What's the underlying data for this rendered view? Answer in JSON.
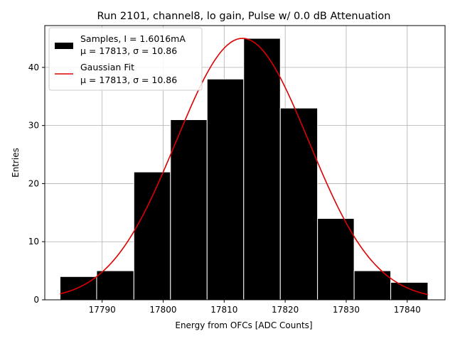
{
  "chart_data": {
    "type": "bar",
    "title": "Run 2101, channel8, lo gain, Pulse w/ 0.0 dB Attenuation",
    "xlabel": "Energy from OFCs [ADC Counts]",
    "ylabel": "Entries",
    "xlim": [
      17780.6,
      17846.2
    ],
    "ylim": [
      0,
      47.2
    ],
    "xticks": [
      17790,
      17800,
      17810,
      17820,
      17830,
      17840
    ],
    "yticks": [
      0,
      10,
      20,
      30,
      40
    ],
    "grid": true,
    "legend_position": "top-left",
    "histogram": {
      "name": "Samples, I = 1.6016mA",
      "stats": "μ = 17813, σ = 10.86",
      "bin_edges": [
        17783.1,
        17789.1,
        17795.2,
        17801.2,
        17807.2,
        17813.2,
        17819.2,
        17825.3,
        17831.3,
        17837.3,
        17843.4
      ],
      "counts": [
        4,
        5,
        22,
        31,
        38,
        45,
        33,
        14,
        5,
        3
      ],
      "color": "#000000"
    },
    "fit": {
      "name": "Gaussian Fit",
      "stats": "μ = 17813, σ = 10.86",
      "type": "gaussian",
      "amplitude": 45,
      "mu": 17813,
      "sigma": 10.86,
      "x_range": [
        17783.1,
        17843.4
      ],
      "color": "#dd0000"
    }
  }
}
